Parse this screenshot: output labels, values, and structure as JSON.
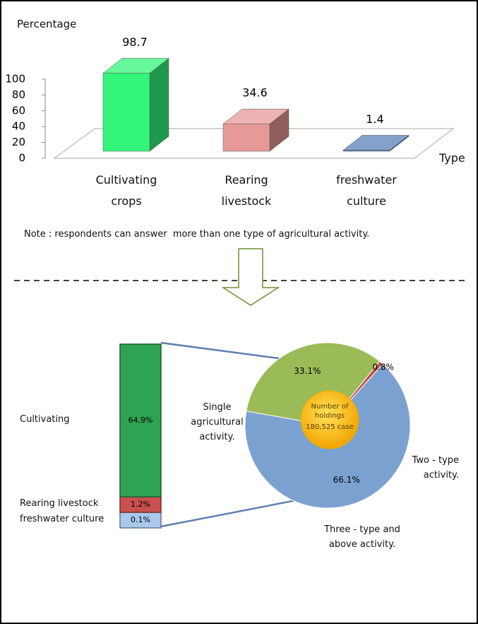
{
  "chart_data": [
    {
      "type": "bar",
      "ylabel": "Percentage",
      "xlabel": "Type",
      "categories": [
        "Cultivating crops",
        "Rearing livestock",
        "freshwater culture"
      ],
      "values": [
        98.7,
        34.6,
        1.4
      ],
      "colors": [
        "#33f57a",
        "#e59a98",
        "#5b80b8"
      ],
      "ylim": [
        0,
        100
      ],
      "yticks": [
        0,
        20,
        40,
        60,
        80,
        100
      ],
      "grid": false,
      "note": "Note : respondents can answer  more than one type of agricultural activity."
    },
    {
      "type": "stacked",
      "categories": [
        "Cultivating",
        "Rearing livestock",
        "freshwater culture"
      ],
      "values": [
        64.9,
        1.2,
        0.1
      ],
      "value_labels": [
        "64.9%",
        "1.2%",
        "0.1%"
      ],
      "colors": [
        "#2ea352",
        "#c9504d",
        "#a9c8ec"
      ]
    },
    {
      "type": "pie",
      "categories": [
        "Single agricultural activity.",
        "Two - type activity.",
        "Three - type and above activity."
      ],
      "values": [
        66.1,
        33.1,
        0.8
      ],
      "value_labels": [
        "66.1%",
        "33.1%",
        "0.8%"
      ],
      "colors": [
        "#7ba1d0",
        "#9bbb59",
        "#c0504d"
      ],
      "center_label": [
        "Number of holdings",
        "180,525 case"
      ]
    }
  ]
}
